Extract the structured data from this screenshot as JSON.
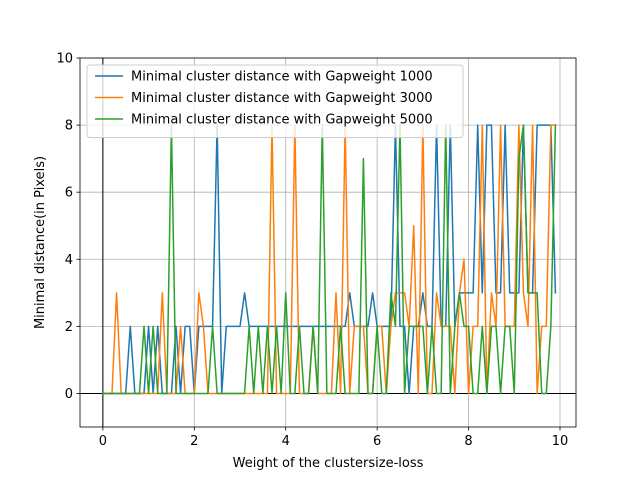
{
  "chart_data": {
    "type": "line",
    "xlabel": "Weight of the clustersize-loss",
    "ylabel": "Minimal distance(in Pixels)",
    "xlim": [
      -0.5,
      10.35
    ],
    "ylim": [
      -1,
      10
    ],
    "xticks": [
      0,
      2,
      4,
      6,
      8,
      10
    ],
    "yticks": [
      0,
      2,
      4,
      6,
      8,
      10
    ],
    "grid": true,
    "legend_position": "upper-left",
    "zero_line": true,
    "x": [
      0,
      0.1,
      0.2,
      0.3,
      0.4,
      0.5,
      0.6,
      0.7,
      0.8,
      0.9,
      1.0,
      1.1,
      1.2,
      1.3,
      1.4,
      1.5,
      1.6,
      1.7,
      1.8,
      1.9,
      2.0,
      2.1,
      2.2,
      2.3,
      2.4,
      2.5,
      2.6,
      2.7,
      2.8,
      2.9,
      3.0,
      3.1,
      3.2,
      3.3,
      3.4,
      3.5,
      3.6,
      3.7,
      3.8,
      3.9,
      4.0,
      4.1,
      4.2,
      4.3,
      4.4,
      4.5,
      4.6,
      4.7,
      4.8,
      4.9,
      5.0,
      5.1,
      5.2,
      5.3,
      5.4,
      5.5,
      5.6,
      5.7,
      5.8,
      5.9,
      6.0,
      6.1,
      6.2,
      6.3,
      6.4,
      6.5,
      6.6,
      6.7,
      6.8,
      6.9,
      7.0,
      7.1,
      7.2,
      7.3,
      7.4,
      7.5,
      7.6,
      7.7,
      7.8,
      7.9,
      8.0,
      8.1,
      8.2,
      8.3,
      8.4,
      8.5,
      8.6,
      8.7,
      8.8,
      8.9,
      9.0,
      9.1,
      9.2,
      9.3,
      9.4,
      9.5,
      9.6,
      9.7,
      9.8,
      9.9
    ],
    "series": [
      {
        "name": "Minimal cluster distance with Gapweight 1000",
        "color": "#1f77b4",
        "values": [
          0,
          0,
          0,
          0,
          0,
          0,
          2,
          0,
          0,
          0,
          2,
          0,
          2,
          0,
          0,
          0,
          2,
          0,
          2,
          2,
          0,
          2,
          2,
          2,
          2,
          8,
          0,
          2,
          2,
          2,
          2,
          3,
          2,
          2,
          2,
          2,
          2,
          2,
          2,
          2,
          2,
          2,
          2,
          2,
          2,
          2,
          2,
          2,
          2,
          2,
          2,
          2,
          2,
          2,
          3,
          2,
          2,
          2,
          2,
          3,
          2,
          2,
          2,
          2,
          8,
          2,
          2,
          0,
          2,
          2,
          3,
          2,
          2,
          8,
          2,
          2,
          8,
          2,
          3,
          3,
          3,
          3,
          8,
          3,
          8,
          8,
          3,
          3,
          8,
          3,
          3,
          3,
          8,
          3,
          3,
          8,
          8,
          8,
          8,
          3
        ]
      },
      {
        "name": "Minimal cluster distance with Gapweight 3000",
        "color": "#ff7f0e",
        "values": [
          0,
          0,
          0,
          3,
          0,
          0,
          0,
          0,
          0,
          0,
          0,
          0,
          0,
          3,
          0,
          0,
          0,
          2,
          0,
          0,
          0,
          3,
          2,
          0,
          0,
          0,
          0,
          0,
          0,
          0,
          0,
          0,
          0,
          0,
          0,
          0,
          0,
          8,
          0,
          0,
          0,
          0,
          8,
          0,
          0,
          0,
          2,
          0,
          0,
          0,
          0,
          3,
          0,
          8,
          0,
          2,
          2,
          2,
          0,
          0,
          2,
          2,
          0,
          2,
          3,
          3,
          3,
          2,
          5,
          0,
          8,
          0,
          0,
          3,
          2,
          2,
          2,
          0,
          3,
          4,
          0,
          2,
          2,
          8,
          0,
          3,
          2,
          8,
          2,
          2,
          2,
          8,
          3,
          2,
          8,
          0,
          2,
          2,
          8,
          8
        ]
      },
      {
        "name": "Minimal cluster distance with Gapweight 5000",
        "color": "#2ca02c",
        "values": [
          0,
          0,
          0,
          0,
          0,
          0,
          0,
          0,
          0,
          2,
          0,
          2,
          0,
          0,
          0,
          8,
          0,
          0,
          0,
          0,
          0,
          0,
          0,
          0,
          2,
          0,
          0,
          0,
          0,
          0,
          0,
          0,
          2,
          0,
          2,
          0,
          2,
          0,
          2,
          0,
          3,
          0,
          0,
          2,
          0,
          0,
          2,
          0,
          8,
          0,
          0,
          0,
          2,
          0,
          0,
          0,
          0,
          7,
          0,
          0,
          2,
          0,
          0,
          3,
          2,
          8,
          0,
          2,
          2,
          2,
          2,
          0,
          2,
          0,
          0,
          8,
          0,
          2,
          3,
          2,
          2,
          0,
          0,
          2,
          0,
          2,
          2,
          0,
          2,
          2,
          0,
          7,
          8,
          3,
          3,
          3,
          0,
          0,
          2,
          8
        ]
      }
    ]
  }
}
